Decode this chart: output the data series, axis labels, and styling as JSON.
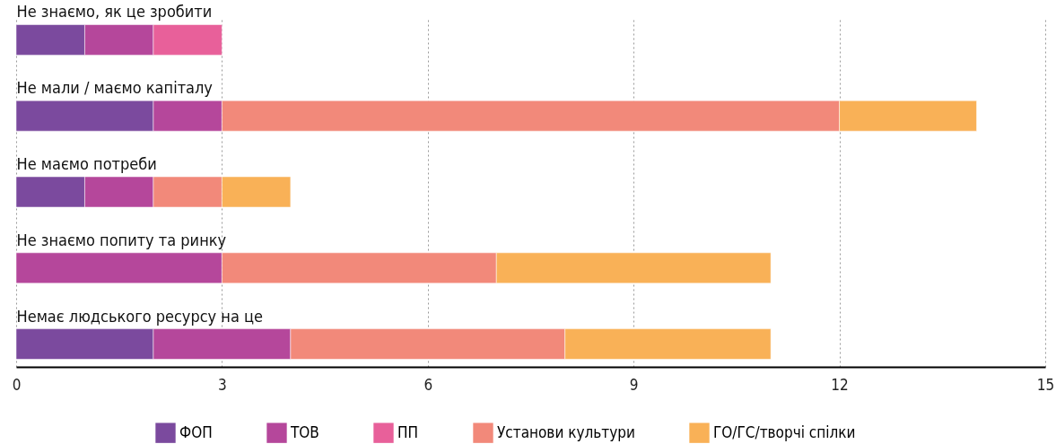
{
  "chart_data": {
    "type": "bar",
    "orientation": "horizontal",
    "stacked": true,
    "categories": [
      "Не знаємо, як це зробити",
      "Не мали / маємо капіталу",
      "Не маємо потреби",
      "Не знаємо попиту та ринку",
      "Немає людського ресурсу на це"
    ],
    "series": [
      {
        "name": "ФОП",
        "color": "#7b4a9e",
        "values": [
          1,
          2,
          1,
          null,
          2
        ]
      },
      {
        "name": "ТОВ",
        "color": "#b5479b",
        "values": [
          1,
          1,
          1,
          3,
          2
        ]
      },
      {
        "name": "ПП",
        "color": "#e8609a",
        "values": [
          1,
          null,
          null,
          null,
          null
        ]
      },
      {
        "name": "Установи культури",
        "color": "#f2897a",
        "values": [
          null,
          9,
          1,
          4,
          4
        ]
      },
      {
        "name": "ГО/ГС/творчі спілки",
        "color": "#f9b157",
        "values": [
          null,
          2,
          1,
          4,
          3
        ]
      }
    ],
    "xlim": [
      0,
      15
    ],
    "xticks": [
      0,
      3,
      6,
      9,
      12,
      15
    ],
    "grid": "x",
    "legend": "bottom"
  }
}
